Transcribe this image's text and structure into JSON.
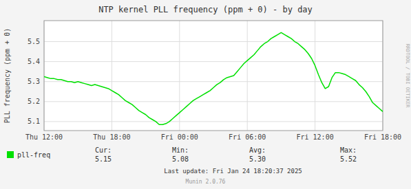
{
  "chart_data": {
    "type": "line",
    "title": "NTP kernel PLL frequency (ppm + 0) - by day",
    "y_label": "PLL frequency (ppm + 0)",
    "x": [
      0,
      1,
      2,
      3,
      4,
      5,
      6,
      7,
      8,
      9,
      10,
      11,
      12,
      13,
      14,
      15,
      16,
      17,
      18,
      19,
      20,
      21,
      22,
      23,
      24,
      25,
      26,
      27,
      28,
      29,
      30,
      31,
      32,
      33,
      34,
      35,
      36,
      37,
      38,
      39,
      40,
      41,
      42,
      43,
      44,
      45,
      46,
      47,
      48,
      49,
      50,
      51,
      52,
      53,
      54,
      55,
      56,
      57,
      58,
      59,
      60,
      61,
      62,
      63,
      64,
      65,
      66,
      67,
      68,
      69,
      70,
      71,
      72,
      73,
      74,
      75,
      76,
      77,
      78,
      79,
      80,
      81,
      82,
      83,
      84,
      85,
      86,
      87,
      88,
      89,
      90,
      91,
      92,
      93,
      94,
      95,
      96,
      97,
      98,
      99,
      100
    ],
    "series": [
      {
        "name": "pll-freq",
        "color": "#00e000",
        "values": [
          5.325,
          5.32,
          5.315,
          5.315,
          5.31,
          5.31,
          5.305,
          5.3,
          5.3,
          5.295,
          5.3,
          5.295,
          5.29,
          5.285,
          5.28,
          5.285,
          5.28,
          5.275,
          5.27,
          5.265,
          5.255,
          5.245,
          5.235,
          5.22,
          5.205,
          5.195,
          5.185,
          5.17,
          5.155,
          5.145,
          5.135,
          5.12,
          5.11,
          5.1,
          5.085,
          5.085,
          5.09,
          5.1,
          5.115,
          5.13,
          5.145,
          5.16,
          5.175,
          5.19,
          5.205,
          5.215,
          5.225,
          5.235,
          5.245,
          5.255,
          5.27,
          5.285,
          5.295,
          5.31,
          5.32,
          5.325,
          5.33,
          5.35,
          5.37,
          5.39,
          5.405,
          5.42,
          5.435,
          5.455,
          5.475,
          5.49,
          5.5,
          5.515,
          5.525,
          5.535,
          5.545,
          5.535,
          5.525,
          5.515,
          5.5,
          5.49,
          5.475,
          5.46,
          5.44,
          5.415,
          5.38,
          5.335,
          5.295,
          5.265,
          5.275,
          5.32,
          5.345,
          5.345,
          5.34,
          5.335,
          5.325,
          5.315,
          5.305,
          5.285,
          5.27,
          5.25,
          5.225,
          5.195,
          5.18,
          5.165,
          5.15
        ]
      }
    ],
    "xlim": [
      0,
      100
    ],
    "xticks": [
      {
        "value": 0,
        "label": "Thu 12:00"
      },
      {
        "value": 20,
        "label": "Thu 18:00"
      },
      {
        "value": 40,
        "label": "Fri 00:00"
      },
      {
        "value": 60,
        "label": "Fri 06:00"
      },
      {
        "value": 80,
        "label": "Fri 12:00"
      },
      {
        "value": 100,
        "label": "Fri 18:00"
      }
    ],
    "ylim": [
      5.055,
      5.605
    ],
    "yticks": [
      5.1,
      5.2,
      5.3,
      5.4,
      5.5
    ],
    "grid": true,
    "legend": "bottom left",
    "stats": [
      {
        "label": "Cur:",
        "text": "5.15"
      },
      {
        "label": "Min:",
        "text": "5.08"
      },
      {
        "label": "Avg:",
        "text": "5.30"
      },
      {
        "label": "Max:",
        "text": "5.52"
      }
    ],
    "footer": [
      "Last update: Fri Jan 24 18:20:37 2025",
      "Munin 2.0.76"
    ],
    "watermark": "RRDTOOL / TOBI OETIKER"
  }
}
